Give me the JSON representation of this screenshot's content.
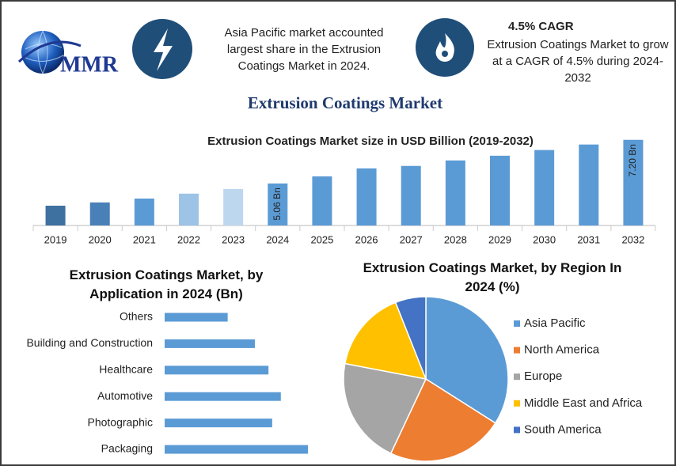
{
  "header": {
    "logo": "MMR",
    "highlight": "Asia Pacific market accounted largest share in the Extrusion Coatings Market in 2024.",
    "cagr_title": "4.5% CAGR",
    "cagr_text": "Extrusion Coatings Market to grow at a CAGR of 4.5% during 2024-2032"
  },
  "title": "Extrusion Coatings Market",
  "chart_data": [
    {
      "type": "bar",
      "title": "Extrusion Coatings Market size in USD Billion (2019-2032)",
      "categories": [
        "2019",
        "2020",
        "2021",
        "2022",
        "2023",
        "2024",
        "2025",
        "2026",
        "2027",
        "2028",
        "2029",
        "2030",
        "2031",
        "2032"
      ],
      "values": [
        3.97,
        4.13,
        4.32,
        4.56,
        4.79,
        5.06,
        5.41,
        5.8,
        5.92,
        6.19,
        6.42,
        6.7,
        6.97,
        7.2
      ],
      "value_labels": [
        null,
        null,
        null,
        null,
        null,
        "5.06 Bn",
        null,
        null,
        null,
        null,
        null,
        null,
        null,
        "7.20 Bn"
      ],
      "colors": [
        "#3f71a0",
        "#4a80b8",
        "#5b9bd5",
        "#9dc3e6",
        "#bdd7ee",
        "#5b9bd5",
        "#5b9bd5",
        "#5b9bd5",
        "#5b9bd5",
        "#5b9bd5",
        "#5b9bd5",
        "#5b9bd5",
        "#5b9bd5",
        "#5b9bd5"
      ],
      "ylim": [
        3,
        7.5
      ]
    },
    {
      "type": "barh",
      "title": "Extrusion Coatings Market, by Application in 2024 (Bn)",
      "categories": [
        "Others",
        "Building and Construction",
        "Healthcare",
        "Automotive",
        "Photographic",
        "Packaging"
      ],
      "values": [
        0.51,
        0.73,
        0.84,
        0.94,
        0.87,
        1.16
      ],
      "color": "#5b9bd5",
      "xlim": [
        0,
        1.3
      ]
    },
    {
      "type": "pie",
      "title": "Extrusion Coatings Market, by Region In 2024 (%)",
      "categories": [
        "Asia Pacific",
        "North America",
        "Europe",
        "Middle East and Africa",
        "South America"
      ],
      "values": [
        34,
        23,
        21,
        16,
        6
      ],
      "colors": [
        "#5b9bd5",
        "#ed7d31",
        "#a5a5a5",
        "#ffc000",
        "#4472c4"
      ],
      "legend": "right"
    }
  ]
}
